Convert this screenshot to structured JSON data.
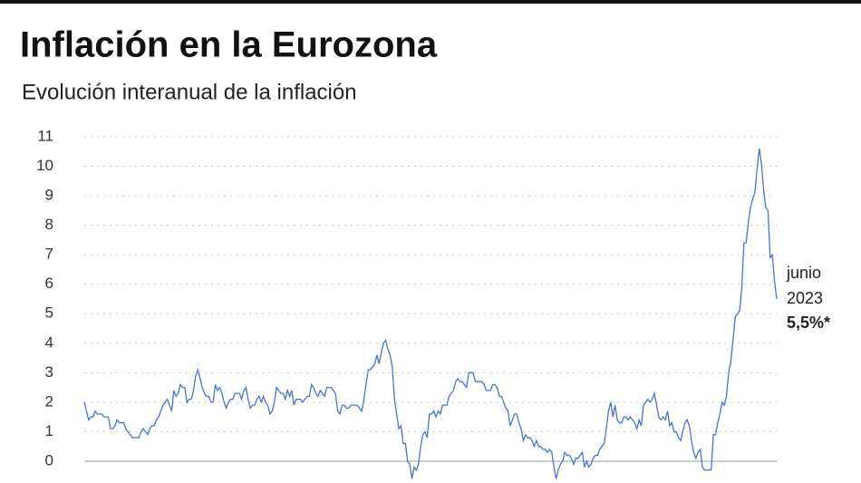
{
  "chart_data": {
    "type": "line",
    "title": "Inflación en la Eurozona",
    "subtitle": "Evolución interanual de la inflación",
    "color": "#4a74c9",
    "ylim": [
      -0.6,
      11.2
    ],
    "yticks": [
      0,
      1,
      2,
      3,
      4,
      5,
      6,
      7,
      8,
      9,
      10,
      11
    ],
    "grid": true,
    "values": [
      2.0,
      1.7,
      1.4,
      1.5,
      1.5,
      1.7,
      1.6,
      1.6,
      1.6,
      1.5,
      1.5,
      1.5,
      1.1,
      1.1,
      1.2,
      1.4,
      1.3,
      1.3,
      1.3,
      1.1,
      1.0,
      0.9,
      0.8,
      0.8,
      0.8,
      0.8,
      1.0,
      1.1,
      1.0,
      0.9,
      1.1,
      1.2,
      1.2,
      1.4,
      1.5,
      1.7,
      1.9,
      2.0,
      2.1,
      1.9,
      1.7,
      2.4,
      2.2,
      2.3,
      2.6,
      2.5,
      2.5,
      2.0,
      2.1,
      2.1,
      2.4,
      2.9,
      3.1,
      2.8,
      2.5,
      2.3,
      2.2,
      2.2,
      2.0,
      2.0,
      2.6,
      2.4,
      2.5,
      2.3,
      2.0,
      1.8,
      2.0,
      2.1,
      2.1,
      2.3,
      2.3,
      2.3,
      2.1,
      2.4,
      2.5,
      2.1,
      1.8,
      1.9,
      1.9,
      2.1,
      2.2,
      2.0,
      2.2,
      2.0,
      1.9,
      1.6,
      1.7,
      2.0,
      2.5,
      2.4,
      2.3,
      2.3,
      2.1,
      2.4,
      2.2,
      2.4,
      1.9,
      2.1,
      2.1,
      2.1,
      2.0,
      2.1,
      2.2,
      2.2,
      2.6,
      2.5,
      2.3,
      2.2,
      2.4,
      2.3,
      2.2,
      2.5,
      2.5,
      2.5,
      2.4,
      2.3,
      1.7,
      1.6,
      1.9,
      1.9,
      1.8,
      1.8,
      1.9,
      1.9,
      1.9,
      1.9,
      1.8,
      1.7,
      2.1,
      2.6,
      3.1,
      3.1,
      3.2,
      3.3,
      3.6,
      3.3,
      3.7,
      4.0,
      4.1,
      3.8,
      3.6,
      3.2,
      2.1,
      1.6,
      1.1,
      1.2,
      0.6,
      0.6,
      0.0,
      -0.1,
      -0.6,
      -0.2,
      -0.3,
      -0.1,
      0.5,
      0.9,
      1.0,
      0.8,
      1.6,
      1.6,
      1.7,
      1.5,
      1.7,
      1.6,
      1.9,
      1.9,
      1.9,
      2.2,
      2.3,
      2.4,
      2.7,
      2.8,
      2.7,
      2.7,
      2.6,
      2.5,
      3.0,
      3.0,
      3.0,
      2.7,
      2.7,
      2.7,
      2.7,
      2.6,
      2.4,
      2.4,
      2.4,
      2.6,
      2.6,
      2.5,
      2.2,
      2.2,
      2.0,
      1.8,
      1.7,
      1.2,
      1.4,
      1.6,
      1.6,
      1.3,
      1.1,
      0.7,
      0.9,
      0.8,
      0.8,
      0.7,
      0.5,
      0.7,
      0.5,
      0.5,
      0.4,
      0.4,
      0.3,
      0.4,
      0.3,
      -0.2,
      -0.6,
      -0.3,
      -0.1,
      0.0,
      0.3,
      0.2,
      0.2,
      0.1,
      -0.1,
      0.1,
      0.1,
      0.2,
      0.3,
      -0.2,
      0.0,
      -0.2,
      -0.1,
      0.1,
      0.2,
      0.2,
      0.4,
      0.5,
      0.6,
      1.1,
      1.7,
      2.0,
      1.5,
      1.9,
      1.4,
      1.3,
      1.3,
      1.5,
      1.5,
      1.4,
      1.5,
      1.4,
      1.3,
      1.1,
      1.4,
      1.2,
      1.9,
      2.0,
      2.1,
      2.0,
      2.1,
      2.3,
      1.9,
      1.5,
      1.4,
      1.5,
      1.4,
      1.7,
      1.2,
      1.3,
      1.0,
      1.0,
      0.8,
      0.7,
      1.0,
      1.3,
      1.4,
      1.2,
      0.7,
      0.3,
      0.1,
      0.3,
      0.4,
      -0.2,
      -0.3,
      -0.3,
      -0.3,
      -0.3,
      0.9,
      0.9,
      1.3,
      1.6,
      2.0,
      1.9,
      2.2,
      3.0,
      3.4,
      4.1,
      4.9,
      5.0,
      5.1,
      5.9,
      7.4,
      7.4,
      8.1,
      8.6,
      8.9,
      9.1,
      9.9,
      10.6,
      10.1,
      9.2,
      8.6,
      8.5,
      6.9,
      7.0,
      6.1,
      5.5
    ],
    "annotation": {
      "date": [
        "junio",
        "2023"
      ],
      "label": "5,5%*"
    }
  }
}
